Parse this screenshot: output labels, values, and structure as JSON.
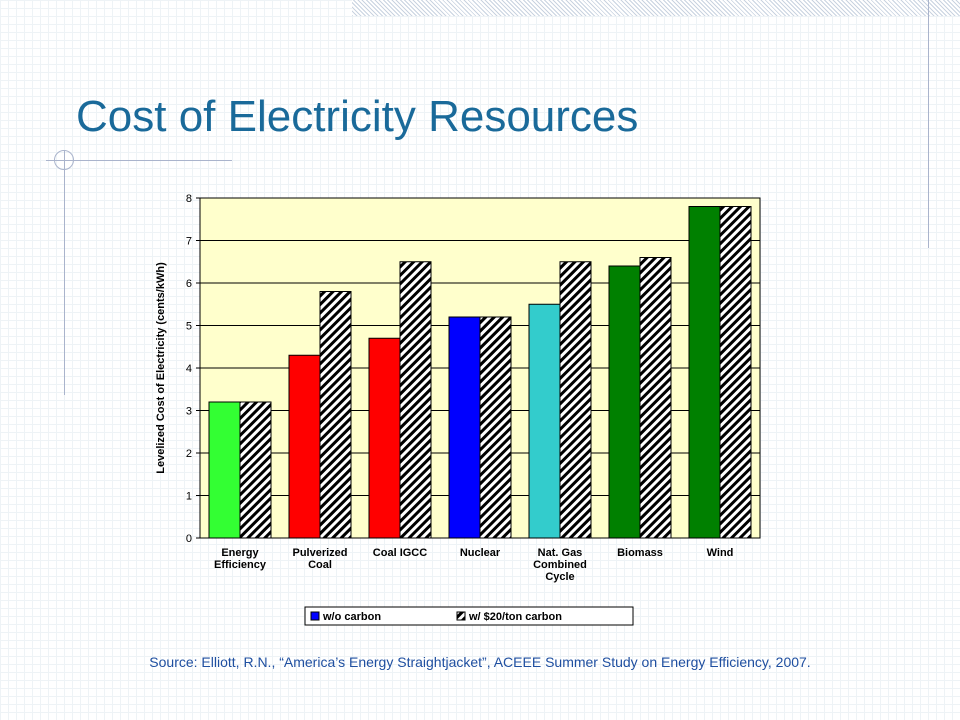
{
  "slide": {
    "title": "Cost of Electricity Resources",
    "source": "Source: Elliott, R.N., “America’s Energy Straightjacket”, ACEEE Summer Study on Energy Efficiency, 2007."
  },
  "chart_data": {
    "type": "bar",
    "ylabel": "Levelized Cost of Electricity (cents/kWh)",
    "ylim": [
      0,
      8
    ],
    "yticks": [
      0,
      1,
      2,
      3,
      4,
      5,
      6,
      7,
      8
    ],
    "categories": [
      [
        "Energy",
        "Efficiency"
      ],
      [
        "Pulverized",
        "Coal"
      ],
      [
        "Coal IGCC"
      ],
      [
        "Nuclear"
      ],
      [
        "Nat. Gas",
        "Combined",
        "Cycle"
      ],
      [
        "Biomass"
      ],
      [
        "Wind"
      ]
    ],
    "series": [
      {
        "name": "w/o carbon",
        "values": [
          3.2,
          4.3,
          4.7,
          5.2,
          5.5,
          6.4,
          7.8
        ],
        "colors": [
          "#33ff33",
          "#ff0000",
          "#ff0000",
          "#0000ff",
          "#33cccc",
          "#008000",
          "#008000"
        ]
      },
      {
        "name": "w/ $20/ton carbon",
        "values": [
          3.2,
          5.8,
          6.5,
          5.2,
          6.5,
          6.6,
          7.8
        ],
        "pattern": "diagonal-hatch"
      }
    ],
    "legend": "bottom",
    "legend_marker_color": "#0000ff",
    "plot_background": "#ffffcc",
    "grid": true
  }
}
